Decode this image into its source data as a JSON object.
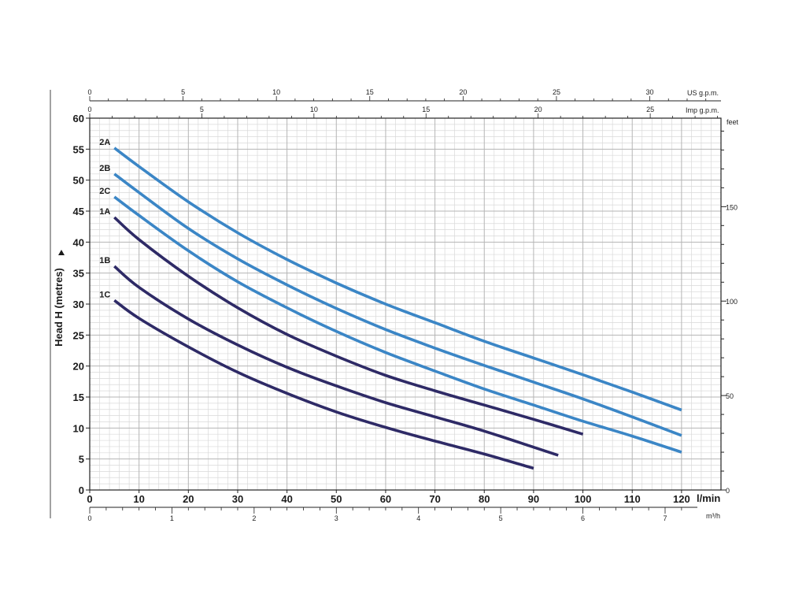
{
  "chart_data": {
    "type": "line",
    "ylabel": "Head H (metres)",
    "xlabel_primary": "l/min",
    "x_unit_m3h": "m³/h",
    "x_unit_usgpm": "US g.p.m.",
    "x_unit_impgpm": "Imp g.p.m.",
    "y_unit_feet": "feet",
    "xlim": [
      0,
      128
    ],
    "ylim": [
      0,
      60
    ],
    "grid": true,
    "x_ticks": [
      0,
      10,
      20,
      30,
      40,
      50,
      60,
      70,
      80,
      90,
      100,
      110,
      120
    ],
    "y_ticks": [
      0,
      5,
      10,
      15,
      20,
      25,
      30,
      35,
      40,
      45,
      50,
      55,
      60
    ],
    "feet_ticks": [
      0,
      50,
      100,
      150
    ],
    "m3h_ticks": [
      0,
      1,
      2,
      3,
      4,
      5,
      6,
      7
    ],
    "usgpm_ticks": [
      0,
      5,
      10,
      15,
      20,
      25,
      30
    ],
    "impgpm_ticks": [
      0,
      5,
      10,
      15,
      20,
      25
    ],
    "series": [
      {
        "name": "2A",
        "color": "#3b86c6",
        "x": [
          5,
          10,
          20,
          30,
          40,
          50,
          60,
          70,
          80,
          90,
          100,
          110,
          120
        ],
        "y": [
          55.2,
          52.2,
          46.5,
          41.5,
          37.2,
          33.4,
          30.0,
          27.0,
          24.0,
          21.3,
          18.6,
          15.8,
          12.9
        ]
      },
      {
        "name": "2B",
        "color": "#3b86c6",
        "x": [
          5,
          10,
          20,
          30,
          40,
          50,
          60,
          70,
          80,
          90,
          100,
          110,
          120
        ],
        "y": [
          51.0,
          48.0,
          42.2,
          37.3,
          33.1,
          29.3,
          25.9,
          22.9,
          20.1,
          17.4,
          14.7,
          11.8,
          8.8
        ]
      },
      {
        "name": "2C",
        "color": "#3b86c6",
        "x": [
          5,
          10,
          20,
          30,
          40,
          50,
          60,
          70,
          80,
          90,
          100,
          110,
          120
        ],
        "y": [
          47.3,
          44.3,
          38.6,
          33.6,
          29.4,
          25.6,
          22.2,
          19.2,
          16.3,
          13.7,
          11.1,
          8.7,
          6.1
        ]
      },
      {
        "name": "1A",
        "color": "#2e2a66",
        "x": [
          5,
          10,
          20,
          30,
          40,
          50,
          60,
          70,
          80,
          90,
          100
        ],
        "y": [
          44.0,
          40.4,
          34.5,
          29.4,
          25.1,
          21.6,
          18.5,
          16.0,
          13.7,
          11.4,
          9.0
        ]
      },
      {
        "name": "1B",
        "color": "#2e2a66",
        "x": [
          5,
          10,
          20,
          30,
          40,
          50,
          60,
          70,
          80,
          90,
          95
        ],
        "y": [
          36.1,
          32.7,
          27.6,
          23.4,
          19.8,
          16.8,
          14.1,
          11.8,
          9.5,
          6.9,
          5.6
        ]
      },
      {
        "name": "1C",
        "color": "#2e2a66",
        "x": [
          5,
          10,
          20,
          30,
          40,
          50,
          60,
          70,
          80,
          90
        ],
        "y": [
          30.6,
          27.7,
          23.1,
          19.0,
          15.6,
          12.6,
          10.1,
          7.9,
          5.8,
          3.5
        ]
      }
    ]
  }
}
